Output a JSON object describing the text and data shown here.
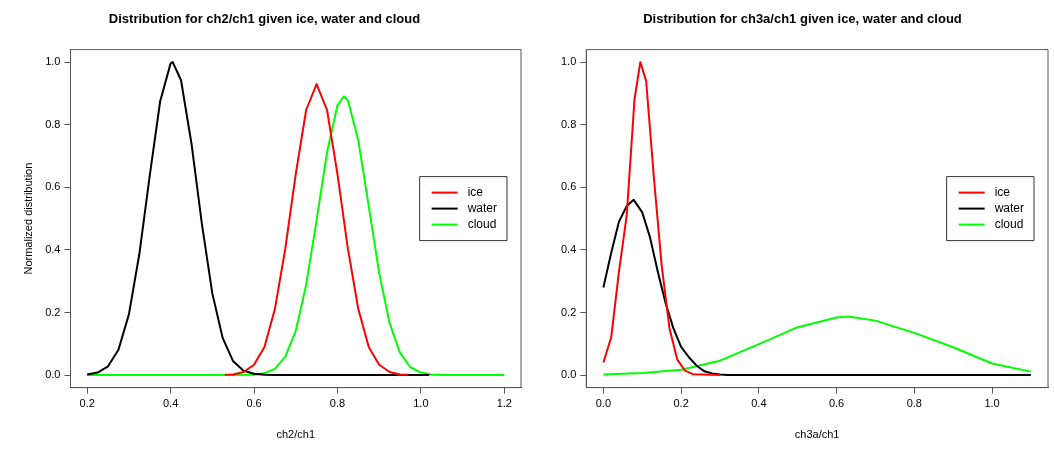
{
  "chart_data": [
    {
      "type": "line",
      "title": "Distribution for ch2/ch1 given ice, water and cloud",
      "xlabel": "ch2/ch1",
      "ylabel": "Normalized distribution",
      "xlim": [
        0.16,
        1.24
      ],
      "ylim": [
        -0.04,
        1.04
      ],
      "xticks": [
        {
          "value": 0.2,
          "label": "0.2"
        },
        {
          "value": 0.4,
          "label": "0.4"
        },
        {
          "value": 0.6,
          "label": "0.6"
        },
        {
          "value": 0.8,
          "label": "0.8"
        },
        {
          "value": 1.0,
          "label": "1.0"
        },
        {
          "value": 1.2,
          "label": "1.2"
        }
      ],
      "yticks": [
        {
          "value": 0,
          "label": "0.0"
        },
        {
          "value": 0.2,
          "label": "0.2"
        },
        {
          "value": 0.4,
          "label": "0.4"
        },
        {
          "value": 0.6,
          "label": "0.6"
        },
        {
          "value": 0.8,
          "label": "0.8"
        },
        {
          "value": 1.0,
          "label": "1.0"
        }
      ],
      "grid": false,
      "legend": "right",
      "marker": "none",
      "line_style": "solid",
      "series": [
        {
          "name": "ice",
          "color": "#ff0000",
          "x": [
            0.53,
            0.55,
            0.575,
            0.6,
            0.625,
            0.65,
            0.675,
            0.7,
            0.725,
            0.75,
            0.775,
            0.8,
            0.825,
            0.85,
            0.875,
            0.9,
            0.925,
            0.95,
            0.97
          ],
          "values": [
            0.001,
            0.002,
            0.01,
            0.033,
            0.09,
            0.211,
            0.404,
            0.642,
            0.847,
            0.93,
            0.847,
            0.642,
            0.404,
            0.211,
            0.09,
            0.033,
            0.01,
            0.002,
            0.001
          ]
        },
        {
          "name": "water",
          "color": "#000000",
          "x": [
            0.2,
            0.225,
            0.25,
            0.275,
            0.3,
            0.325,
            0.35,
            0.375,
            0.4,
            0.405,
            0.425,
            0.45,
            0.475,
            0.5,
            0.525,
            0.55,
            0.575,
            0.6,
            0.625,
            0.65,
            1.02
          ],
          "values": [
            0.002,
            0.008,
            0.028,
            0.081,
            0.194,
            0.386,
            0.637,
            0.875,
            0.996,
            1.0,
            0.942,
            0.74,
            0.483,
            0.261,
            0.118,
            0.044,
            0.014,
            0.004,
            0.001,
            0,
            0
          ]
        },
        {
          "name": "cloud",
          "color": "#00ff00",
          "x": [
            0.2,
            0.55,
            0.6,
            0.625,
            0.65,
            0.675,
            0.7,
            0.725,
            0.75,
            0.775,
            0.8,
            0.815,
            0.825,
            0.85,
            0.875,
            0.9,
            0.925,
            0.95,
            0.975,
            1.0,
            1.025,
            1.05,
            1.2
          ],
          "values": [
            0,
            0,
            0.001,
            0.006,
            0.02,
            0.059,
            0.141,
            0.289,
            0.495,
            0.712,
            0.862,
            0.89,
            0.878,
            0.75,
            0.54,
            0.326,
            0.166,
            0.071,
            0.025,
            0.008,
            0.002,
            0,
            0
          ]
        }
      ]
    },
    {
      "type": "line",
      "title": "Distribution for ch3a/ch1 given ice, water and cloud",
      "xlabel": "ch3a/ch1",
      "xlim": [
        -0.044,
        1.144
      ],
      "ylim": [
        -0.04,
        1.04
      ],
      "xticks": [
        {
          "value": 0,
          "label": "0.0"
        },
        {
          "value": 0.2,
          "label": "0.2"
        },
        {
          "value": 0.4,
          "label": "0.4"
        },
        {
          "value": 0.6,
          "label": "0.6"
        },
        {
          "value": 0.8,
          "label": "0.8"
        },
        {
          "value": 1.0,
          "label": "1.0"
        }
      ],
      "yticks": [
        {
          "value": 0,
          "label": "0.0"
        },
        {
          "value": 0.2,
          "label": "0.2"
        },
        {
          "value": 0.4,
          "label": "0.4"
        },
        {
          "value": 0.6,
          "label": "0.6"
        },
        {
          "value": 0.8,
          "label": "0.8"
        },
        {
          "value": 1.0,
          "label": "1.0"
        }
      ],
      "grid": false,
      "legend": "right",
      "marker": "none",
      "line_style": "solid",
      "series": [
        {
          "name": "ice",
          "color": "#ff0000",
          "x": [
            0,
            0.02,
            0.04,
            0.06,
            0.08,
            0.095,
            0.11,
            0.13,
            0.15,
            0.17,
            0.19,
            0.21,
            0.23,
            0.3
          ],
          "values": [
            0.04,
            0.12,
            0.33,
            0.51,
            0.88,
            1.0,
            0.94,
            0.63,
            0.35,
            0.15,
            0.05,
            0.014,
            0.003,
            0
          ]
        },
        {
          "name": "water",
          "color": "#000000",
          "x": [
            0,
            0.02,
            0.04,
            0.06,
            0.078,
            0.1,
            0.12,
            0.14,
            0.16,
            0.18,
            0.2,
            0.22,
            0.24,
            0.26,
            0.28,
            0.3,
            0.32,
            1.1
          ],
          "values": [
            0.28,
            0.39,
            0.49,
            0.54,
            0.56,
            0.52,
            0.44,
            0.33,
            0.23,
            0.15,
            0.09,
            0.057,
            0.03,
            0.012,
            0.005,
            0.002,
            0,
            0
          ]
        },
        {
          "name": "cloud",
          "color": "#00ff00",
          "x": [
            0,
            0.1,
            0.2,
            0.3,
            0.4,
            0.5,
            0.6,
            0.63,
            0.7,
            0.8,
            0.9,
            1.0,
            1.1
          ],
          "values": [
            0.002,
            0.007,
            0.017,
            0.046,
            0.099,
            0.153,
            0.184,
            0.187,
            0.174,
            0.135,
            0.089,
            0.037,
            0.011
          ]
        }
      ]
    }
  ]
}
